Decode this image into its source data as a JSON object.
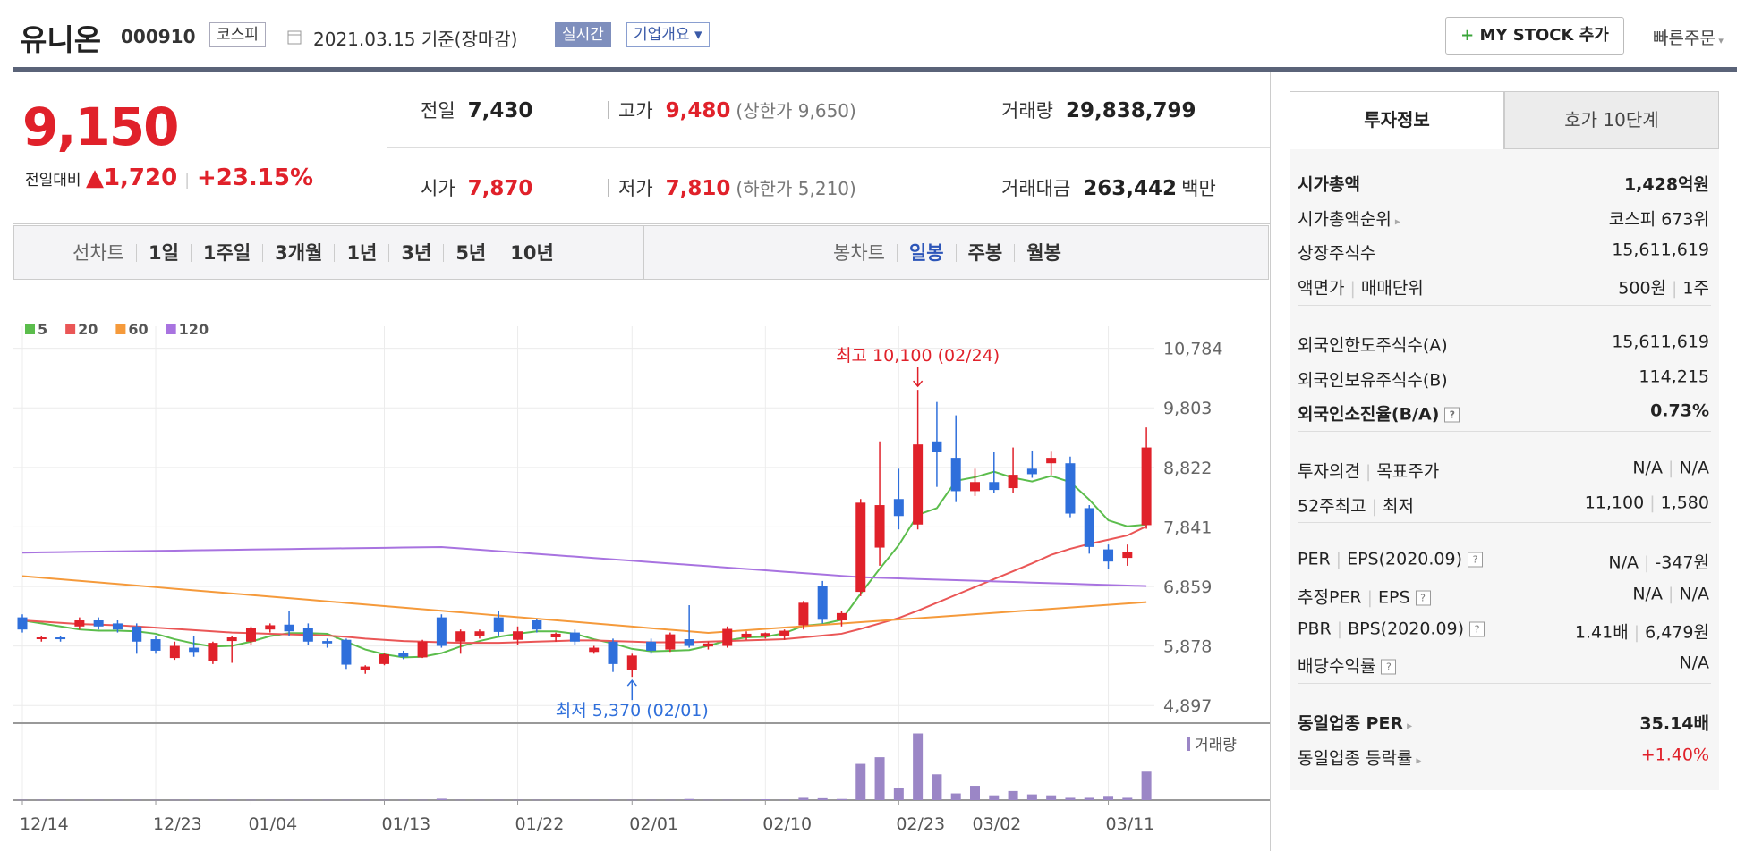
{
  "header": {
    "name": "유니온",
    "code": "000910",
    "market": "코스피",
    "date": "2021.03.15 기준(장마감)",
    "realtime": "실시간",
    "overview": "기업개요",
    "mystock": "MY STOCK 추가",
    "quick_order": "빠른주문"
  },
  "quote": {
    "price": "9,150",
    "change_label": "전일대비",
    "change": "1,720",
    "change_pct": "+23.15%",
    "prev": {
      "label": "전일",
      "value": "7,430"
    },
    "high": {
      "label": "고가",
      "value": "9,480",
      "note": "(상한가 9,650)"
    },
    "volume": {
      "label": "거래량",
      "value": "29,838,799"
    },
    "open": {
      "label": "시가",
      "value": "7,870"
    },
    "low": {
      "label": "저가",
      "value": "7,810",
      "note": "(하한가 5,210)"
    },
    "amount": {
      "label": "거래대금",
      "value": "263,442",
      "unit": "백만"
    }
  },
  "tabs": {
    "line_label": "선차트",
    "line": [
      "1일",
      "1주일",
      "3개월",
      "1년",
      "3년",
      "5년",
      "10년"
    ],
    "candle_label": "봉차트",
    "candle": [
      "일봉",
      "주봉",
      "월봉"
    ],
    "candle_active": 0
  },
  "chart": {
    "type": "candlestick",
    "up_color": "#e0212a",
    "down_color": "#2f6fdb",
    "volume_color": "#9b86c6",
    "categories": [
      "12/14",
      null,
      null,
      null,
      null,
      null,
      null,
      "12/23",
      null,
      null,
      null,
      null,
      "01/04",
      null,
      null,
      null,
      null,
      null,
      null,
      "01/13",
      null,
      null,
      null,
      null,
      null,
      null,
      "01/22",
      null,
      null,
      null,
      null,
      null,
      "02/01",
      null,
      null,
      null,
      null,
      null,
      null,
      "02/10",
      null,
      null,
      null,
      null,
      null,
      null,
      "02/23",
      null,
      null,
      null,
      "03/02",
      null,
      null,
      null,
      null,
      null,
      null,
      "03/11",
      null,
      null
    ],
    "open": [
      6350,
      6000,
      6020,
      6200,
      6300,
      6250,
      6200,
      5990,
      5680,
      5850,
      5630,
      5960,
      5950,
      6150,
      6230,
      6170,
      5960,
      5980,
      5480,
      5580,
      5760,
      5690,
      6350,
      5950,
      6050,
      6350,
      5980,
      6300,
      6020,
      6100,
      5780,
      5950,
      5480,
      5950,
      5820,
      5990,
      5870,
      5880,
      6020,
      6040,
      6050,
      6220,
      6860,
      6300,
      6770,
      7500,
      8300,
      7880,
      9250,
      8980,
      8430,
      8580,
      8480,
      8800,
      8890,
      8890,
      8150,
      7470,
      7330,
      7870
    ],
    "high": [
      6400,
      6050,
      6050,
      6350,
      6350,
      6300,
      6250,
      6050,
      5950,
      6050,
      5950,
      6050,
      6200,
      6250,
      6450,
      6250,
      6000,
      6000,
      5560,
      5760,
      5800,
      5980,
      6400,
      6150,
      6150,
      6450,
      6200,
      6320,
      6100,
      6150,
      5880,
      6000,
      5750,
      6000,
      6100,
      6550,
      5950,
      6200,
      6120,
      6100,
      6150,
      6620,
      6950,
      6450,
      8300,
      9250,
      8800,
      10100,
      9900,
      9680,
      8800,
      9070,
      9150,
      9100,
      9080,
      9000,
      8200,
      7550,
      7550,
      9480
    ],
    "low": [
      6100,
      5950,
      5950,
      6150,
      6150,
      6100,
      5750,
      5750,
      5650,
      5700,
      5580,
      5600,
      5900,
      6100,
      6050,
      5900,
      5850,
      5500,
      5420,
      5560,
      5660,
      5680,
      5850,
      5750,
      6000,
      6050,
      5900,
      6100,
      5950,
      5900,
      5750,
      5450,
      5370,
      5750,
      5780,
      5850,
      5820,
      5850,
      5980,
      6000,
      5980,
      6150,
      6250,
      6200,
      6700,
      7200,
      7800,
      7800,
      8500,
      8250,
      8350,
      8400,
      8400,
      8650,
      8700,
      8000,
      7400,
      7150,
      7200,
      7810
    ],
    "close": [
      6150,
      6020,
      5990,
      6300,
      6200,
      6150,
      5950,
      5800,
      5880,
      5780,
      5930,
      6020,
      6170,
      6220,
      6120,
      5950,
      5920,
      5570,
      5540,
      5740,
      5700,
      5950,
      5880,
      6120,
      6120,
      6110,
      6120,
      6150,
      6080,
      5950,
      5850,
      5580,
      5720,
      5800,
      6070,
      5880,
      5920,
      6160,
      6080,
      6090,
      6130,
      6590,
      6310,
      6420,
      8240,
      8200,
      8020,
      9200,
      9070,
      8430,
      8580,
      8450,
      8700,
      8710,
      8980,
      8060,
      7510,
      7270,
      7430,
      9150
    ],
    "series": [
      {
        "name": "5",
        "color": "#5bbd4c",
        "values": [
          6300,
          6250,
          6200,
          6150,
          6130,
          6130,
          6120,
          6080,
          5990,
          5920,
          5870,
          5880,
          5950,
          6040,
          6090,
          6090,
          6080,
          5950,
          5820,
          5740,
          5690,
          5700,
          5760,
          5870,
          5960,
          6030,
          6080,
          6120,
          6120,
          6080,
          5990,
          5920,
          5830,
          5790,
          5800,
          5810,
          5880,
          5970,
          6020,
          6030,
          6090,
          6210,
          6240,
          6310,
          6740,
          7150,
          7540,
          8040,
          8150,
          8600,
          8660,
          8750,
          8650,
          8590,
          8680,
          8580,
          8290,
          7950,
          7850,
          7880
        ]
      },
      {
        "name": "20",
        "color": "#ea5656",
        "values": [
          6300,
          6280,
          6260,
          6240,
          6230,
          6220,
          6200,
          6180,
          6160,
          6140,
          6120,
          6100,
          6090,
          6080,
          6070,
          6060,
          6050,
          6030,
          6000,
          5980,
          5960,
          5950,
          5940,
          5930,
          5930,
          5930,
          5940,
          5950,
          5960,
          5970,
          5970,
          5960,
          5950,
          5940,
          5940,
          5940,
          5950,
          5960,
          5970,
          5980,
          5990,
          6020,
          6050,
          6080,
          6160,
          6250,
          6340,
          6460,
          6590,
          6720,
          6850,
          6980,
          7110,
          7240,
          7380,
          7480,
          7560,
          7630,
          7700,
          7850
        ]
      },
      {
        "name": "60",
        "color": "#f59a3b",
        "values": [
          7030,
          7004,
          6978,
          6952,
          6926,
          6900,
          6874,
          6848,
          6822,
          6796,
          6770,
          6744,
          6718,
          6692,
          6666,
          6640,
          6614,
          6588,
          6562,
          6536,
          6510,
          6484,
          6458,
          6432,
          6406,
          6380,
          6354,
          6328,
          6302,
          6276,
          6250,
          6224,
          6198,
          6172,
          6146,
          6120,
          6094,
          6116,
          6138,
          6160,
          6182,
          6204,
          6226,
          6248,
          6270,
          6292,
          6314,
          6336,
          6358,
          6380,
          6402,
          6424,
          6446,
          6468,
          6490,
          6512,
          6534,
          6556,
          6578,
          6600
        ]
      },
      {
        "name": "120",
        "color": "#a873e0",
        "values": [
          7417,
          7421,
          7425,
          7430,
          7434,
          7438,
          7442,
          7446,
          7450,
          7455,
          7459,
          7463,
          7467,
          7471,
          7475,
          7480,
          7484,
          7488,
          7492,
          7496,
          7500,
          7505,
          7509,
          7486,
          7464,
          7441,
          7419,
          7396,
          7373,
          7351,
          7328,
          7306,
          7283,
          7260,
          7238,
          7215,
          7193,
          7170,
          7147,
          7125,
          7102,
          7080,
          7057,
          7034,
          7012,
          7002,
          6992,
          6982,
          6973,
          6963,
          6953,
          6943,
          6933,
          6923,
          6914,
          6904,
          6894,
          6884,
          6875,
          6865
        ]
      }
    ],
    "volume": [
      300000,
      300000,
      300000,
      300000,
      300000,
      300000,
      300000,
      300000,
      300000,
      300000,
      300000,
      300000,
      300000,
      300000,
      300000,
      300000,
      300000,
      300000,
      300000,
      300000,
      300000,
      300000,
      1500000,
      300000,
      300000,
      300000,
      300000,
      300000,
      300000,
      300000,
      300000,
      300000,
      300000,
      300000,
      300000,
      1200000,
      300000,
      300000,
      300000,
      900000,
      300000,
      2400000,
      2000000,
      1200000,
      38000000,
      45000000,
      13000000,
      70000000,
      27000000,
      7000000,
      15000000,
      5000000,
      9500000,
      6000000,
      5000000,
      2400000,
      2400000,
      3500000,
      2400000,
      29838799
    ],
    "volume_lim": [
      0,
      78000000
    ],
    "volume_label": "거래량",
    "ylim": [
      4650,
      11000
    ],
    "yticks": [
      {
        "value": 4897,
        "label": "4,897"
      },
      {
        "value": 5878,
        "label": "5,878"
      },
      {
        "value": 6859,
        "label": "6,859"
      },
      {
        "value": 7841,
        "label": "7,841"
      },
      {
        "value": 8822,
        "label": "8,822"
      },
      {
        "value": 9803,
        "label": "9,803"
      },
      {
        "value": 10784,
        "label": "10,784"
      }
    ],
    "grid": true,
    "max_label": "최고 10,100 (02/24)",
    "min_label": "최저 5,370 (02/01)"
  },
  "panel": {
    "tabs": [
      "투자정보",
      "호가 10단계"
    ],
    "groups": [
      [
        {
          "label": [
            "시가총액"
          ],
          "value": [
            "1,428억원"
          ],
          "bold": true
        },
        {
          "label": [
            "시가총액순위"
          ],
          "value": [
            "코스피 673위"
          ],
          "arrow": true
        },
        {
          "label": [
            "상장주식수"
          ],
          "value": [
            "15,611,619"
          ]
        },
        {
          "label": [
            "액면가",
            "매매단위"
          ],
          "value": [
            "500원",
            "1주"
          ]
        }
      ],
      [
        {
          "label": [
            "외국인한도주식수(A)"
          ],
          "value": [
            "15,611,619"
          ]
        },
        {
          "label": [
            "외국인보유주식수(B)"
          ],
          "value": [
            "114,215"
          ]
        },
        {
          "label": [
            "외국인소진율(B/A)"
          ],
          "value": [
            "0.73%"
          ],
          "bold": true,
          "help": true
        }
      ],
      [
        {
          "label": [
            "투자의견",
            "목표주가"
          ],
          "value": [
            "N/A",
            "N/A"
          ]
        },
        {
          "label": [
            "52주최고",
            "최저"
          ],
          "value": [
            "11,100",
            "1,580"
          ]
        }
      ],
      [
        {
          "label": [
            "PER",
            "EPS(2020.09)"
          ],
          "value": [
            "N/A",
            "-347원"
          ],
          "help": true
        },
        {
          "label": [
            "추정PER",
            "EPS"
          ],
          "value": [
            "N/A",
            "N/A"
          ],
          "help": true
        },
        {
          "label": [
            "PBR",
            "BPS(2020.09)"
          ],
          "value": [
            "1.41배",
            "6,479원"
          ],
          "help": true
        },
        {
          "label": [
            "배당수익률"
          ],
          "value": [
            "N/A"
          ],
          "help": true
        }
      ],
      [
        {
          "label": [
            "동일업종 PER"
          ],
          "value": [
            "35.14배"
          ],
          "bold": true,
          "arrow": true
        },
        {
          "label": [
            "동일업종 등락률"
          ],
          "value": [
            "+1.40%"
          ],
          "color": "#e0212a",
          "arrow": true
        }
      ]
    ]
  }
}
